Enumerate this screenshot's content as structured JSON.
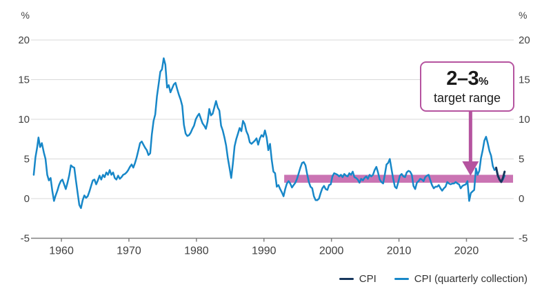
{
  "annotation": {
    "range": "2–3",
    "percent_suffix": "%",
    "label": "target range"
  },
  "legend": [
    {
      "label": "CPI",
      "color": "#16365c"
    },
    {
      "label": "CPI (quarterly collection)",
      "color": "#1787c8"
    }
  ],
  "colors": {
    "cpi_line": "#16365c",
    "cpi_quarterly_line": "#1787c8",
    "target_band": "#ca74b3",
    "annotation_accent": "#b5539f",
    "gridline": "#d9d9d9",
    "axis_line": "#7f7f7f",
    "tick_text": "#404040"
  },
  "chart_data": {
    "type": "line",
    "title": "",
    "xlabel": "",
    "ylabel": "%",
    "y_unit": "%",
    "xlim": [
      1955.5,
      2027
    ],
    "ylim": [
      -5,
      20
    ],
    "x_ticks": [
      1960,
      1970,
      1980,
      1990,
      2000,
      2010,
      2020
    ],
    "y_ticks": [
      -5,
      0,
      5,
      10,
      15,
      20
    ],
    "grid": true,
    "legend_position": "bottom-right",
    "target_band": {
      "label": "2–3% target range",
      "from": 2,
      "to": 3,
      "start_year": 1993,
      "end_year": 2026.9,
      "color": "#ca74b3",
      "arrow_year": 2020.6
    },
    "series": [
      {
        "name": "CPI (quarterly collection)",
        "color": "#1787c8",
        "width": 2.5,
        "points": [
          [
            1955.9,
            3.0
          ],
          [
            1956.15,
            5.2
          ],
          [
            1956.4,
            6.4
          ],
          [
            1956.6,
            7.7
          ],
          [
            1956.85,
            6.5
          ],
          [
            1957.1,
            7.0
          ],
          [
            1957.4,
            5.8
          ],
          [
            1957.65,
            5.0
          ],
          [
            1957.9,
            3.0
          ],
          [
            1958.15,
            2.3
          ],
          [
            1958.4,
            2.6
          ],
          [
            1958.65,
            1.0
          ],
          [
            1958.9,
            -0.3
          ],
          [
            1959.15,
            0.4
          ],
          [
            1959.4,
            1.0
          ],
          [
            1959.65,
            1.7
          ],
          [
            1959.9,
            2.2
          ],
          [
            1960.15,
            2.4
          ],
          [
            1960.4,
            1.8
          ],
          [
            1960.65,
            1.2
          ],
          [
            1960.9,
            2.0
          ],
          [
            1961.15,
            2.9
          ],
          [
            1961.4,
            4.2
          ],
          [
            1961.65,
            4.0
          ],
          [
            1961.9,
            3.9
          ],
          [
            1962.15,
            2.3
          ],
          [
            1962.4,
            0.7
          ],
          [
            1962.65,
            -0.8
          ],
          [
            1962.9,
            -1.2
          ],
          [
            1963.15,
            -0.2
          ],
          [
            1963.4,
            0.4
          ],
          [
            1963.65,
            0.1
          ],
          [
            1963.9,
            0.3
          ],
          [
            1964.15,
            0.9
          ],
          [
            1964.4,
            1.6
          ],
          [
            1964.65,
            2.3
          ],
          [
            1964.9,
            2.4
          ],
          [
            1965.15,
            1.8
          ],
          [
            1965.4,
            2.3
          ],
          [
            1965.65,
            2.9
          ],
          [
            1965.9,
            2.4
          ],
          [
            1966.15,
            3.0
          ],
          [
            1966.4,
            2.7
          ],
          [
            1966.65,
            3.3
          ],
          [
            1966.9,
            3.0
          ],
          [
            1967.15,
            3.6
          ],
          [
            1967.4,
            3.0
          ],
          [
            1967.65,
            3.3
          ],
          [
            1967.9,
            2.6
          ],
          [
            1968.15,
            2.4
          ],
          [
            1968.4,
            2.9
          ],
          [
            1968.65,
            2.5
          ],
          [
            1968.9,
            2.7
          ],
          [
            1969.15,
            3.0
          ],
          [
            1969.4,
            3.1
          ],
          [
            1969.65,
            3.3
          ],
          [
            1969.9,
            3.6
          ],
          [
            1970.15,
            4.0
          ],
          [
            1970.4,
            4.3
          ],
          [
            1970.65,
            3.9
          ],
          [
            1970.9,
            4.5
          ],
          [
            1971.15,
            5.2
          ],
          [
            1971.4,
            6.1
          ],
          [
            1971.65,
            7.0
          ],
          [
            1971.9,
            7.2
          ],
          [
            1972.15,
            6.8
          ],
          [
            1972.4,
            6.4
          ],
          [
            1972.65,
            6.1
          ],
          [
            1972.9,
            5.5
          ],
          [
            1973.15,
            5.7
          ],
          [
            1973.4,
            8.1
          ],
          [
            1973.65,
            9.8
          ],
          [
            1973.9,
            10.6
          ],
          [
            1974.15,
            12.9
          ],
          [
            1974.4,
            14.4
          ],
          [
            1974.65,
            16.0
          ],
          [
            1974.9,
            16.3
          ],
          [
            1975.15,
            17.7
          ],
          [
            1975.4,
            16.9
          ],
          [
            1975.65,
            14.0
          ],
          [
            1975.9,
            14.3
          ],
          [
            1976.15,
            13.4
          ],
          [
            1976.4,
            13.9
          ],
          [
            1976.65,
            14.4
          ],
          [
            1976.9,
            14.6
          ],
          [
            1977.15,
            13.8
          ],
          [
            1977.4,
            13.1
          ],
          [
            1977.65,
            12.5
          ],
          [
            1977.9,
            11.7
          ],
          [
            1978.15,
            9.3
          ],
          [
            1978.4,
            8.2
          ],
          [
            1978.65,
            7.9
          ],
          [
            1978.9,
            8.0
          ],
          [
            1979.15,
            8.3
          ],
          [
            1979.4,
            8.8
          ],
          [
            1979.65,
            9.2
          ],
          [
            1979.9,
            10.0
          ],
          [
            1980.15,
            10.4
          ],
          [
            1980.4,
            10.7
          ],
          [
            1980.65,
            10.1
          ],
          [
            1980.9,
            9.5
          ],
          [
            1981.15,
            9.2
          ],
          [
            1981.4,
            8.8
          ],
          [
            1981.65,
            9.7
          ],
          [
            1981.9,
            11.3
          ],
          [
            1982.15,
            10.5
          ],
          [
            1982.4,
            10.7
          ],
          [
            1982.65,
            11.5
          ],
          [
            1982.9,
            12.3
          ],
          [
            1983.15,
            11.5
          ],
          [
            1983.4,
            11.1
          ],
          [
            1983.65,
            9.2
          ],
          [
            1983.9,
            8.6
          ],
          [
            1984.15,
            7.7
          ],
          [
            1984.4,
            6.7
          ],
          [
            1984.65,
            5.1
          ],
          [
            1984.9,
            3.9
          ],
          [
            1985.15,
            2.6
          ],
          [
            1985.4,
            4.4
          ],
          [
            1985.65,
            6.6
          ],
          [
            1985.9,
            7.5
          ],
          [
            1986.15,
            8.2
          ],
          [
            1986.4,
            8.9
          ],
          [
            1986.65,
            8.5
          ],
          [
            1986.9,
            9.8
          ],
          [
            1987.15,
            9.4
          ],
          [
            1987.4,
            8.5
          ],
          [
            1987.65,
            8.0
          ],
          [
            1987.9,
            7.1
          ],
          [
            1988.15,
            6.9
          ],
          [
            1988.4,
            7.1
          ],
          [
            1988.65,
            7.3
          ],
          [
            1988.9,
            7.6
          ],
          [
            1989.15,
            6.8
          ],
          [
            1989.4,
            7.6
          ],
          [
            1989.65,
            8.0
          ],
          [
            1989.9,
            7.8
          ],
          [
            1990.15,
            8.6
          ],
          [
            1990.4,
            7.7
          ],
          [
            1990.65,
            6.1
          ],
          [
            1990.9,
            6.9
          ],
          [
            1991.15,
            4.9
          ],
          [
            1991.4,
            3.4
          ],
          [
            1991.65,
            3.2
          ],
          [
            1991.9,
            1.5
          ],
          [
            1992.15,
            1.7
          ],
          [
            1992.4,
            1.2
          ],
          [
            1992.65,
            0.8
          ],
          [
            1992.9,
            0.3
          ],
          [
            1993.15,
            1.2
          ],
          [
            1993.4,
            1.9
          ],
          [
            1993.65,
            2.2
          ],
          [
            1993.9,
            1.9
          ],
          [
            1994.15,
            1.4
          ],
          [
            1994.4,
            1.7
          ],
          [
            1994.65,
            2.0
          ],
          [
            1994.9,
            2.5
          ],
          [
            1995.15,
            3.2
          ],
          [
            1995.4,
            3.9
          ],
          [
            1995.65,
            4.5
          ],
          [
            1995.9,
            4.6
          ],
          [
            1996.15,
            4.2
          ],
          [
            1996.4,
            3.1
          ],
          [
            1996.65,
            2.1
          ],
          [
            1996.9,
            1.5
          ],
          [
            1997.15,
            1.3
          ],
          [
            1997.4,
            0.3
          ],
          [
            1997.65,
            -0.2
          ],
          [
            1997.9,
            -0.2
          ],
          [
            1998.15,
            0.0
          ],
          [
            1998.4,
            0.7
          ],
          [
            1998.65,
            1.3
          ],
          [
            1998.9,
            1.6
          ],
          [
            1999.15,
            1.2
          ],
          [
            1999.4,
            1.1
          ],
          [
            1999.65,
            1.7
          ],
          [
            1999.9,
            1.8
          ],
          [
            2000.15,
            2.8
          ],
          [
            2000.4,
            3.2
          ],
          [
            2000.65,
            3.1
          ],
          [
            2000.9,
            3.0
          ],
          [
            2001.15,
            2.8
          ],
          [
            2001.4,
            3.0
          ],
          [
            2001.65,
            2.7
          ],
          [
            2001.9,
            3.1
          ],
          [
            2002.15,
            2.9
          ],
          [
            2002.4,
            2.8
          ],
          [
            2002.65,
            3.2
          ],
          [
            2002.9,
            3.0
          ],
          [
            2003.15,
            3.4
          ],
          [
            2003.4,
            2.7
          ],
          [
            2003.65,
            2.6
          ],
          [
            2003.9,
            2.4
          ],
          [
            2004.15,
            2.0
          ],
          [
            2004.4,
            2.5
          ],
          [
            2004.65,
            2.3
          ],
          [
            2004.9,
            2.6
          ],
          [
            2005.15,
            2.8
          ],
          [
            2005.4,
            2.5
          ],
          [
            2005.65,
            3.0
          ],
          [
            2005.9,
            2.8
          ],
          [
            2006.15,
            3.0
          ],
          [
            2006.4,
            3.6
          ],
          [
            2006.65,
            4.0
          ],
          [
            2006.9,
            3.3
          ],
          [
            2007.15,
            2.4
          ],
          [
            2007.4,
            2.1
          ],
          [
            2007.65,
            1.9
          ],
          [
            2007.9,
            3.0
          ],
          [
            2008.15,
            4.3
          ],
          [
            2008.4,
            4.5
          ],
          [
            2008.65,
            5.0
          ],
          [
            2008.9,
            3.7
          ],
          [
            2009.15,
            2.5
          ],
          [
            2009.4,
            1.5
          ],
          [
            2009.65,
            1.3
          ],
          [
            2009.9,
            2.1
          ],
          [
            2010.15,
            2.9
          ],
          [
            2010.4,
            3.1
          ],
          [
            2010.65,
            2.8
          ],
          [
            2010.9,
            2.7
          ],
          [
            2011.15,
            3.3
          ],
          [
            2011.4,
            3.5
          ],
          [
            2011.65,
            3.4
          ],
          [
            2011.9,
            3.0
          ],
          [
            2012.15,
            1.6
          ],
          [
            2012.4,
            1.2
          ],
          [
            2012.65,
            2.0
          ],
          [
            2012.9,
            2.2
          ],
          [
            2013.15,
            2.5
          ],
          [
            2013.4,
            2.4
          ],
          [
            2013.65,
            2.2
          ],
          [
            2013.9,
            2.7
          ],
          [
            2014.15,
            2.9
          ],
          [
            2014.4,
            3.0
          ],
          [
            2014.65,
            2.3
          ],
          [
            2014.9,
            1.7
          ],
          [
            2015.15,
            1.3
          ],
          [
            2015.4,
            1.5
          ],
          [
            2015.65,
            1.5
          ],
          [
            2015.9,
            1.7
          ],
          [
            2016.15,
            1.3
          ],
          [
            2016.4,
            1.0
          ],
          [
            2016.65,
            1.3
          ],
          [
            2016.9,
            1.5
          ],
          [
            2017.15,
            2.1
          ],
          [
            2017.4,
            1.9
          ],
          [
            2017.65,
            1.8
          ],
          [
            2017.9,
            1.9
          ],
          [
            2018.15,
            1.9
          ],
          [
            2018.4,
            2.1
          ],
          [
            2018.65,
            1.9
          ],
          [
            2018.9,
            1.8
          ],
          [
            2019.15,
            1.3
          ],
          [
            2019.4,
            1.6
          ],
          [
            2019.65,
            1.7
          ],
          [
            2019.9,
            1.8
          ],
          [
            2020.15,
            2.2
          ],
          [
            2020.4,
            -0.3
          ],
          [
            2020.65,
            0.7
          ],
          [
            2020.9,
            0.9
          ],
          [
            2021.15,
            1.1
          ],
          [
            2021.4,
            3.8
          ],
          [
            2021.65,
            3.0
          ],
          [
            2021.9,
            3.5
          ],
          [
            2022.15,
            5.1
          ],
          [
            2022.4,
            6.1
          ],
          [
            2022.65,
            7.3
          ],
          [
            2022.9,
            7.8
          ],
          [
            2023.15,
            7.0
          ],
          [
            2023.4,
            6.0
          ],
          [
            2023.65,
            5.4
          ],
          [
            2023.9,
            4.1
          ],
          [
            2024.15,
            3.6
          ],
          [
            2024.4,
            3.8
          ],
          [
            2024.65,
            2.8
          ],
          [
            2024.9,
            2.4
          ],
          [
            2025.15,
            2.1
          ],
          [
            2025.4,
            2.4
          ],
          [
            2025.65,
            2.9
          ]
        ]
      },
      {
        "name": "CPI",
        "color": "#16365c",
        "width": 3,
        "points": [
          [
            2024.4,
            3.9
          ],
          [
            2024.65,
            2.9
          ],
          [
            2024.9,
            2.4
          ],
          [
            2025.15,
            2.1
          ],
          [
            2025.4,
            2.6
          ],
          [
            2025.65,
            3.4
          ]
        ]
      }
    ]
  }
}
